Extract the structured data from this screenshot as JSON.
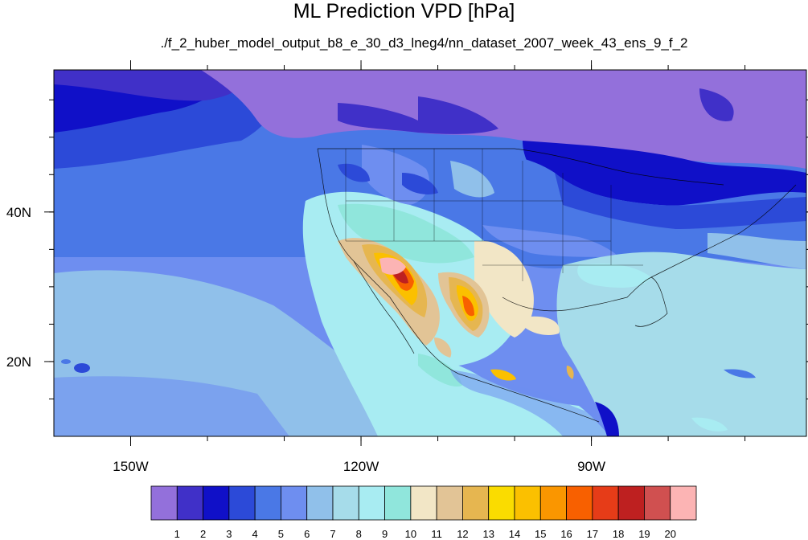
{
  "title": "ML Prediction VPD [hPa]",
  "subtitle": "./f_2_huber_model_output_b8_e_30_d3_lneg4/nn_dataset_2007_week_43_ens_9_f_2",
  "map": {
    "lat_range": [
      10,
      59
    ],
    "lon_range": [
      -160,
      -62
    ],
    "lat_ticks": [
      {
        "value": 40,
        "label": "40N"
      },
      {
        "value": 20,
        "label": "20N"
      }
    ],
    "lon_ticks": [
      {
        "value": -150,
        "label": "150W"
      },
      {
        "value": -120,
        "label": "120W"
      },
      {
        "value": -90,
        "label": "90W"
      }
    ],
    "variable": "VPD",
    "units": "hPa"
  },
  "colorbar": {
    "labels": [
      "1",
      "2",
      "3",
      "4",
      "5",
      "6",
      "7",
      "8",
      "9",
      "10",
      "11",
      "12",
      "13",
      "14",
      "15",
      "16",
      "17",
      "18",
      "19",
      "20"
    ],
    "colors": [
      "#9370db",
      "#4030c8",
      "#1010c8",
      "#2c4ad8",
      "#4a78e6",
      "#6e8ef0",
      "#90c0ea",
      "#a6dcea",
      "#a8ecf2",
      "#90e6dc",
      "#f2e6c6",
      "#e2c496",
      "#e6b650",
      "#fadc00",
      "#fbc000",
      "#fa9600",
      "#f86000",
      "#e63c18",
      "#be2020",
      "#d05050",
      "#fcb4b4"
    ]
  }
}
